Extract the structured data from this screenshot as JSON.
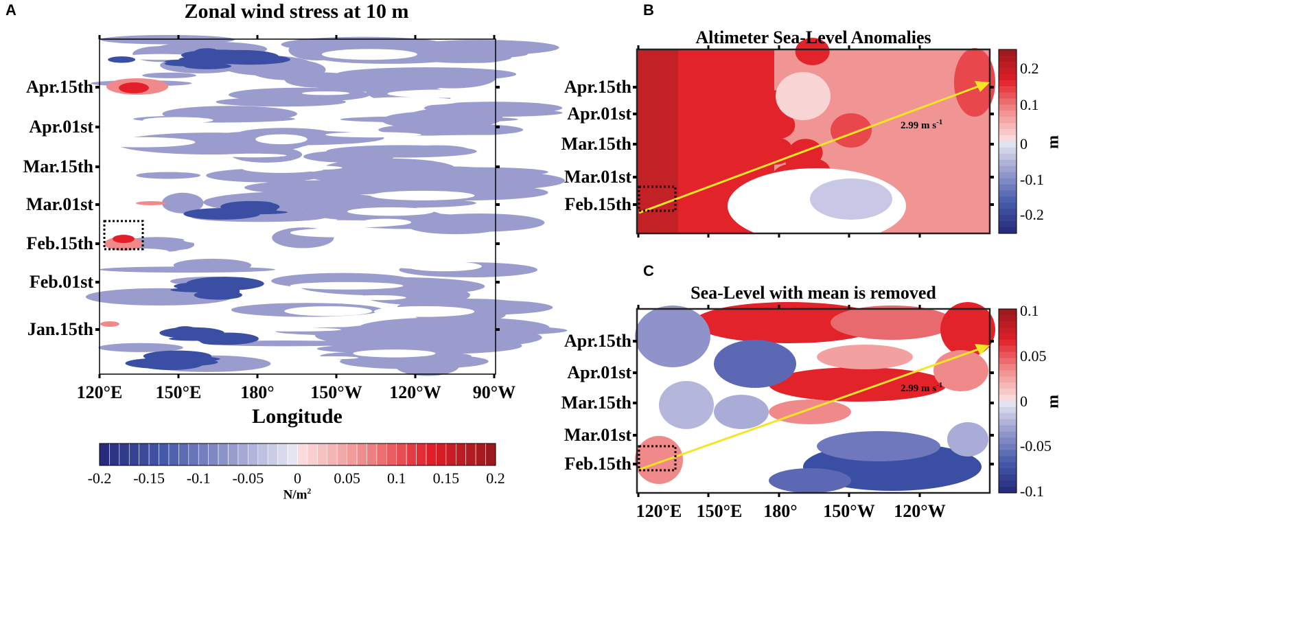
{
  "panels": {
    "a": "A",
    "b": "B",
    "c": "C"
  },
  "chart_data": [
    {
      "type": "heatmap",
      "title": "Zonal wind stress at 10 m",
      "xlabel": "Longitude",
      "xticks": [
        "120°E",
        "150°E",
        "180°",
        "150°W",
        "120°W",
        "90°W"
      ],
      "yticks": [
        "Apr.15th",
        "Apr.01st",
        "Mar.15th",
        "Mar.01st",
        "Feb.15th",
        "Feb.01st",
        "Jan.15th"
      ],
      "colorbar": {
        "label": "N/m2",
        "label_main": "N/m",
        "label_sup": "2",
        "range": [
          -0.2,
          0.2
        ],
        "ticks": [
          "-0.2",
          "-0.15",
          "-0.1",
          "-0.05",
          "0",
          "0.05",
          "0.1",
          "0.15",
          "0.2"
        ],
        "orientation": "horizontal"
      },
      "annotation": "dotted box near 120°E–135°E around Feb.15th"
    },
    {
      "type": "heatmap",
      "title": "Altimeter Sea-Level Anomalies",
      "xticks": [
        "120°E",
        "150°E",
        "180°",
        "150°W",
        "120°W"
      ],
      "yticks": [
        "Apr.15th",
        "Apr.01st",
        "Mar.15th",
        "Mar.01st",
        "Feb.15th"
      ],
      "colorbar": {
        "label": "m",
        "range": [
          -0.25,
          0.25
        ],
        "ticks": [
          "0.2",
          "0.1",
          "0",
          "-0.1",
          "-0.2"
        ],
        "orientation": "vertical"
      },
      "arrow_label": {
        "main": "2.99 m s",
        "sup": "-1"
      },
      "arrow_speed_m_per_s": 2.99
    },
    {
      "type": "heatmap",
      "title": "Sea-Level with mean is removed",
      "xticks": [
        "120°E",
        "150°E",
        "180°",
        "150°W",
        "120°W"
      ],
      "yticks": [
        "Apr.15th",
        "Apr.01st",
        "Mar.15th",
        "Mar.01st",
        "Feb.15th"
      ],
      "colorbar": {
        "label": "m",
        "range": [
          -0.1,
          0.1
        ],
        "ticks": [
          "0.1",
          "0.05",
          "0",
          "-0.05",
          "-0.1"
        ],
        "orientation": "vertical"
      },
      "arrow_label": {
        "main": "2.99 m s",
        "sup": "-1"
      },
      "arrow_speed_m_per_s": 2.99
    }
  ],
  "colors": {
    "blue_dark": "#3a4fa3",
    "blue_mid": "#9a9cce",
    "white": "#ffffff",
    "red": "#e3202a",
    "red_light": "#f08a8a",
    "red_dark": "#a41a20",
    "arrow": "#f5e625"
  }
}
